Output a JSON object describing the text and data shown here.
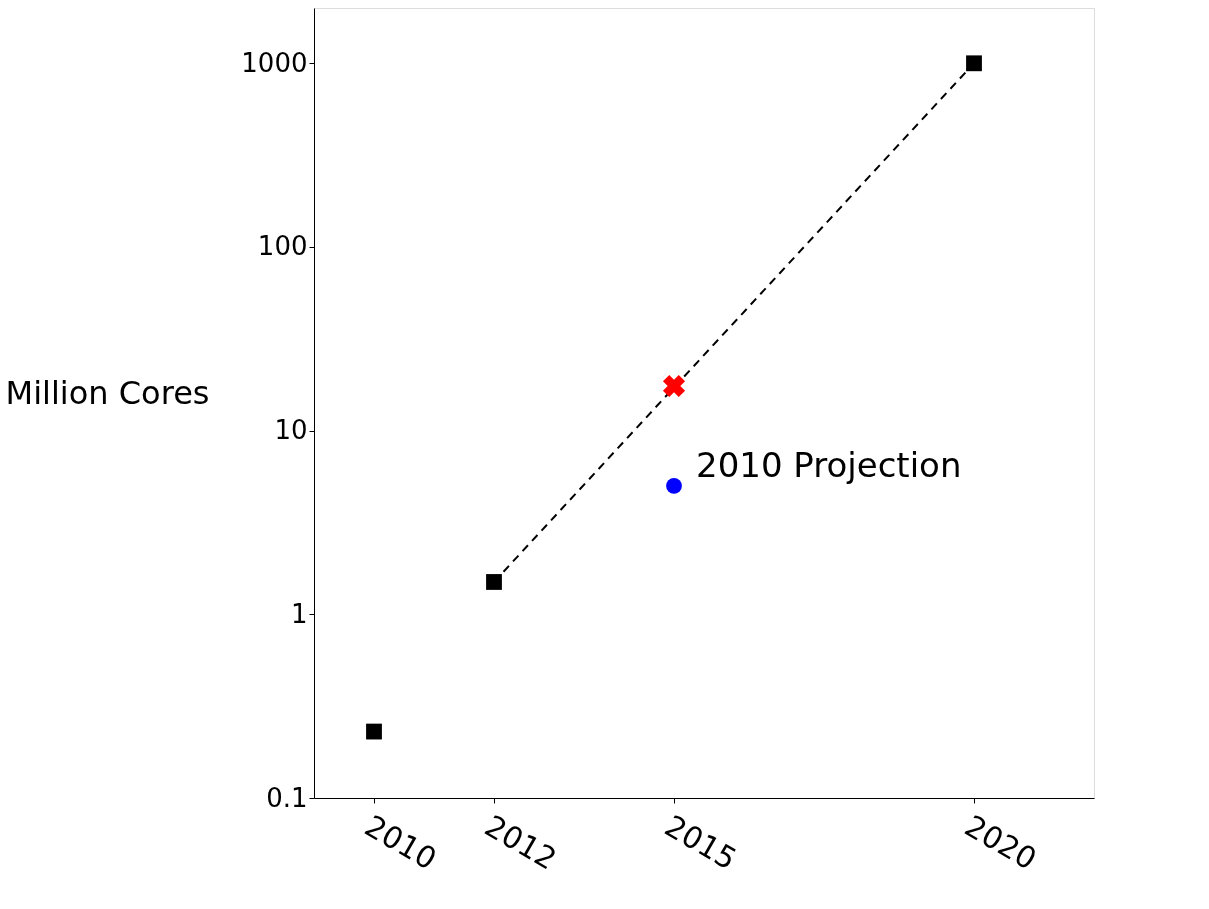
{
  "chart_data": {
    "type": "scatter",
    "ylabel": "Million Cores",
    "log": true,
    "grid": false,
    "xlim": [
      2009,
      2022
    ],
    "xticks": [
      2010,
      2012,
      2015,
      2020
    ],
    "ylim": [
      0.1,
      2000
    ],
    "yticks": [
      0.1,
      1,
      10,
      100,
      1000
    ],
    "series": [
      {
        "color": "#000000",
        "marker": "square",
        "x": [
          2010,
          2012,
          2020
        ],
        "values": [
          0.23,
          1.5,
          1000
        ]
      },
      {
        "type": "line",
        "color": "#000000",
        "line_style": "dashed",
        "marker": "none",
        "x": [
          2012,
          2020
        ],
        "values": [
          1.5,
          1000
        ]
      },
      {
        "color": "#ff0000",
        "marker": "cross",
        "x": [
          2015
        ],
        "values": [
          17.5
        ]
      },
      {
        "color": "#0000ff",
        "marker": "circle",
        "x": [
          2015
        ],
        "values": [
          5
        ]
      }
    ],
    "annotations": [
      {
        "text": "2010 Projection",
        "x": 2015,
        "y": 5
      }
    ]
  }
}
